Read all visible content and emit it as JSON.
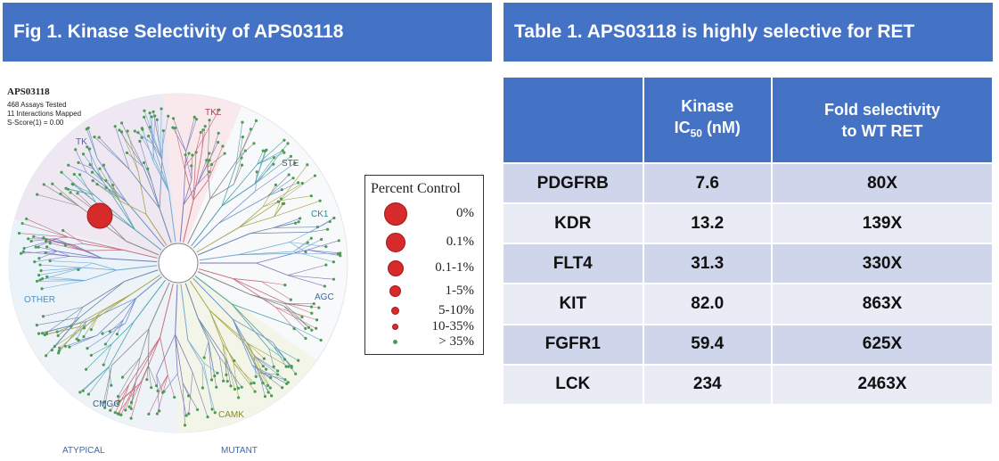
{
  "figure": {
    "banner": "Fig 1. Kinase Selectivity of APS03118",
    "info": {
      "title": "APS03118",
      "line1": "468 Assays Tested",
      "line2": "11 Interactions Mapped",
      "line3": "S-Score(1) = 0.00"
    },
    "groups": [
      {
        "label": "TK",
        "color": "#5a5aa8"
      },
      {
        "label": "TKL",
        "color": "#c0394a"
      },
      {
        "label": "STE",
        "color": "#555555"
      },
      {
        "label": "CK1",
        "color": "#2a8a9a"
      },
      {
        "label": "AGC",
        "color": "#3b6ab0"
      },
      {
        "label": "CAMK",
        "color": "#8a8a2a"
      },
      {
        "label": "CMGC",
        "color": "#3b5a8a"
      },
      {
        "label": "OTHER",
        "color": "#4a90c2"
      },
      {
        "label": "ATYPICAL",
        "color": "#3b6ab0"
      },
      {
        "label": "MUTANT",
        "color": "#3b6ab0"
      }
    ],
    "legend": {
      "title": "Percent Control",
      "entries": [
        "0%",
        "0.1%",
        "0.1-1%",
        "1-5%",
        "5-10%",
        "10-35%",
        "> 35%"
      ]
    }
  },
  "table": {
    "banner": "Table 1. APS03118 is highly selective for RET",
    "headers": {
      "kinase_col": "",
      "ic50_line1": "Kinase",
      "ic50_ic": "IC",
      "ic50_sub": "50",
      "ic50_unit": " (nM)",
      "fold_line1": "Fold selectivity",
      "fold_line2": "to WT RET"
    },
    "rows": [
      {
        "kinase": "PDGFRB",
        "ic50": "7.6",
        "fold": "80X"
      },
      {
        "kinase": "KDR",
        "ic50": "13.2",
        "fold": "139X"
      },
      {
        "kinase": "FLT4",
        "ic50": "31.3",
        "fold": "330X"
      },
      {
        "kinase": "KIT",
        "ic50": "82.0",
        "fold": "863X"
      },
      {
        "kinase": "FGFR1",
        "ic50": "59.4",
        "fold": "625X"
      },
      {
        "kinase": "LCK",
        "ic50": "234",
        "fold": "2463X"
      }
    ]
  },
  "colors": {
    "accent": "#4472c4",
    "row_dark": "#cfd5ea",
    "row_light": "#e9ebf5",
    "hit_red": "#d72b2b",
    "branch_green": "#4f9a55"
  }
}
